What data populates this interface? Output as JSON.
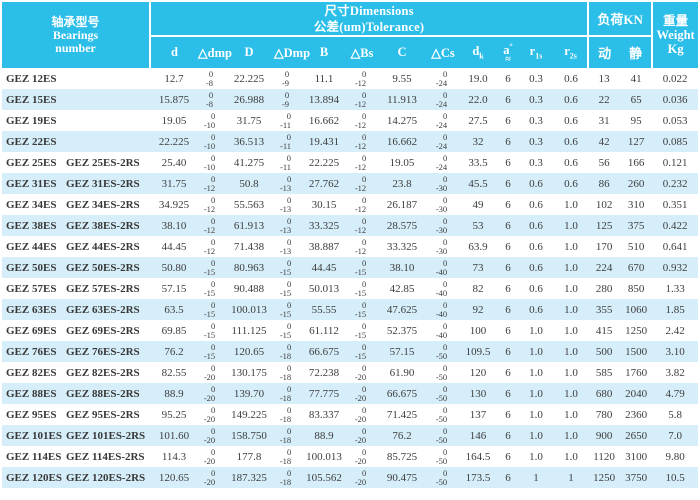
{
  "colors": {
    "header_bg": "#2BBEE8",
    "row_alt_bg": "#D6EEF9",
    "text": "#3D3D3D",
    "header_text": "#FFFFFF"
  },
  "header": {
    "bearings": {
      "zh": "轴承型号",
      "en1": "Bearings",
      "en2": "number"
    },
    "dims_line1": "尺寸Dimensions",
    "dims_line2": "公差(um)Tolerance)",
    "load_title": "负荷KN",
    "load_cols": [
      "动",
      "静"
    ],
    "weight": {
      "zh": "重量",
      "en": "Weight",
      "unit": "Kg"
    },
    "dim_cols": [
      {
        "id": "d",
        "base": "d"
      },
      {
        "id": "dmp",
        "base": "△dmp"
      },
      {
        "id": "D",
        "base": "D"
      },
      {
        "id": "Dmp",
        "base": "△Dmp"
      },
      {
        "id": "B",
        "base": "B"
      },
      {
        "id": "Bs",
        "base": "△Bs"
      },
      {
        "id": "C",
        "base": "C"
      },
      {
        "id": "Cs",
        "base": "△Cs"
      },
      {
        "id": "dk",
        "base": "d",
        "sub": "k"
      },
      {
        "id": "a",
        "base": "a",
        "sup": "°",
        "below": "≈"
      },
      {
        "id": "r1s",
        "base": "r",
        "sub": "1s"
      },
      {
        "id": "r2s",
        "base": "r",
        "sub": "2s"
      }
    ]
  },
  "table": {
    "col_keys": [
      "name1",
      "name2",
      "d",
      "dmp",
      "D",
      "Dmp",
      "B",
      "Bs",
      "C",
      "Cs",
      "dk",
      "a",
      "r1s",
      "r2s",
      "dyn",
      "stat",
      "weight"
    ],
    "rows": [
      {
        "name1": "GEZ 12ES",
        "name2": "",
        "d": "12.7",
        "dmp": [
          "0",
          "-8"
        ],
        "D": "22.225",
        "Dmp": [
          "0",
          "-9"
        ],
        "B": "11.1",
        "Bs": [
          "0",
          "-12"
        ],
        "C": "9.55",
        "Cs": [
          "0",
          "-24"
        ],
        "dk": "19.0",
        "a": "6",
        "r1s": "0.3",
        "r2s": "0.6",
        "dyn": "13",
        "stat": "41",
        "weight": "0.022"
      },
      {
        "name1": "GEZ 15ES",
        "name2": "",
        "d": "15.875",
        "dmp": [
          "0",
          "-8"
        ],
        "D": "26.988",
        "Dmp": [
          "0",
          "-9"
        ],
        "B": "13.894",
        "Bs": [
          "0",
          "-12"
        ],
        "C": "11.913",
        "Cs": [
          "0",
          "-24"
        ],
        "dk": "22.0",
        "a": "6",
        "r1s": "0.3",
        "r2s": "0.6",
        "dyn": "22",
        "stat": "65",
        "weight": "0.036"
      },
      {
        "name1": "GEZ 19ES",
        "name2": "",
        "d": "19.05",
        "dmp": [
          "0",
          "-10"
        ],
        "D": "31.75",
        "Dmp": [
          "0",
          "-11"
        ],
        "B": "16.662",
        "Bs": [
          "0",
          "-12"
        ],
        "C": "14.275",
        "Cs": [
          "0",
          "-24"
        ],
        "dk": "27.5",
        "a": "6",
        "r1s": "0.3",
        "r2s": "0.6",
        "dyn": "31",
        "stat": "95",
        "weight": "0.053"
      },
      {
        "name1": "GEZ 22ES",
        "name2": "",
        "d": "22.225",
        "dmp": [
          "0",
          "-10"
        ],
        "D": "36.513",
        "Dmp": [
          "0",
          "-11"
        ],
        "B": "19.431",
        "Bs": [
          "0",
          "-12"
        ],
        "C": "16.662",
        "Cs": [
          "0",
          "-24"
        ],
        "dk": "32",
        "a": "6",
        "r1s": "0.3",
        "r2s": "0.6",
        "dyn": "42",
        "stat": "127",
        "weight": "0.085"
      },
      {
        "name1": "GEZ 25ES",
        "name2": "GEZ 25ES-2RS",
        "d": "25.40",
        "dmp": [
          "0",
          "-10"
        ],
        "D": "41.275",
        "Dmp": [
          "0",
          "-11"
        ],
        "B": "22.225",
        "Bs": [
          "0",
          "-12"
        ],
        "C": "19.05",
        "Cs": [
          "0",
          "-24"
        ],
        "dk": "33.5",
        "a": "6",
        "r1s": "0.3",
        "r2s": "0.6",
        "dyn": "56",
        "stat": "166",
        "weight": "0.121"
      },
      {
        "name1": "GEZ 31ES",
        "name2": "GEZ 31ES-2RS",
        "d": "31.75",
        "dmp": [
          "0",
          "-12"
        ],
        "D": "50.8",
        "Dmp": [
          "0",
          "-13"
        ],
        "B": "27.762",
        "Bs": [
          "0",
          "-12"
        ],
        "C": "23.8",
        "Cs": [
          "0",
          "-30"
        ],
        "dk": "45.5",
        "a": "6",
        "r1s": "0.6",
        "r2s": "0.6",
        "dyn": "86",
        "stat": "260",
        "weight": "0.232"
      },
      {
        "name1": "GEZ 34ES",
        "name2": "GEZ 34ES-2RS",
        "d": "34.925",
        "dmp": [
          "0",
          "-12"
        ],
        "D": "55.563",
        "Dmp": [
          "0",
          "-13"
        ],
        "B": "30.15",
        "Bs": [
          "0",
          "-12"
        ],
        "C": "26.187",
        "Cs": [
          "0",
          "-30"
        ],
        "dk": "49",
        "a": "6",
        "r1s": "0.6",
        "r2s": "1.0",
        "dyn": "102",
        "stat": "310",
        "weight": "0.351"
      },
      {
        "name1": "GEZ 38ES",
        "name2": "GEZ 38ES-2RS",
        "d": "38.10",
        "dmp": [
          "0",
          "-12"
        ],
        "D": "61.913",
        "Dmp": [
          "0",
          "-13"
        ],
        "B": "33.325",
        "Bs": [
          "0",
          "-12"
        ],
        "C": "28.575",
        "Cs": [
          "0",
          "-30"
        ],
        "dk": "53",
        "a": "6",
        "r1s": "0.6",
        "r2s": "1.0",
        "dyn": "125",
        "stat": "375",
        "weight": "0.422"
      },
      {
        "name1": "GEZ 44ES",
        "name2": "GEZ 44ES-2RS",
        "d": "44.45",
        "dmp": [
          "0",
          "-12"
        ],
        "D": "71.438",
        "Dmp": [
          "0",
          "-13"
        ],
        "B": "38.887",
        "Bs": [
          "0",
          "-12"
        ],
        "C": "33.325",
        "Cs": [
          "0",
          "-30"
        ],
        "dk": "63.9",
        "a": "6",
        "r1s": "0.6",
        "r2s": "1.0",
        "dyn": "170",
        "stat": "510",
        "weight": "0.641"
      },
      {
        "name1": "GEZ 50ES",
        "name2": "GEZ 50ES-2RS",
        "d": "50.80",
        "dmp": [
          "0",
          "-15"
        ],
        "D": "80.963",
        "Dmp": [
          "0",
          "-15"
        ],
        "B": "44.45",
        "Bs": [
          "0",
          "-15"
        ],
        "C": "38.10",
        "Cs": [
          "0",
          "-40"
        ],
        "dk": "73",
        "a": "6",
        "r1s": "0.6",
        "r2s": "1.0",
        "dyn": "224",
        "stat": "670",
        "weight": "0.932"
      },
      {
        "name1": "GEZ 57ES",
        "name2": "GEZ 57ES-2RS",
        "d": "57.15",
        "dmp": [
          "0",
          "-15"
        ],
        "D": "90.488",
        "Dmp": [
          "0",
          "-15"
        ],
        "B": "50.013",
        "Bs": [
          "0",
          "-15"
        ],
        "C": "42.85",
        "Cs": [
          "0",
          "-40"
        ],
        "dk": "82",
        "a": "6",
        "r1s": "0.6",
        "r2s": "1.0",
        "dyn": "280",
        "stat": "850",
        "weight": "1.33"
      },
      {
        "name1": "GEZ 63ES",
        "name2": "GEZ 63ES-2RS",
        "d": "63.5",
        "dmp": [
          "0",
          "-15"
        ],
        "D": "100.013",
        "Dmp": [
          "0",
          "-15"
        ],
        "B": "55.55",
        "Bs": [
          "0",
          "-15"
        ],
        "C": "47.625",
        "Cs": [
          "0",
          "-40"
        ],
        "dk": "92",
        "a": "6",
        "r1s": "0.6",
        "r2s": "1.0",
        "dyn": "355",
        "stat": "1060",
        "weight": "1.85"
      },
      {
        "name1": "GEZ 69ES",
        "name2": "GEZ 69ES-2RS",
        "d": "69.85",
        "dmp": [
          "0",
          "-15"
        ],
        "D": "111.125",
        "Dmp": [
          "0",
          "-15"
        ],
        "B": "61.112",
        "Bs": [
          "0",
          "-15"
        ],
        "C": "52.375",
        "Cs": [
          "0",
          "-40"
        ],
        "dk": "100",
        "a": "6",
        "r1s": "1.0",
        "r2s": "1.0",
        "dyn": "415",
        "stat": "1250",
        "weight": "2.42"
      },
      {
        "name1": "GEZ 76ES",
        "name2": "GEZ 76ES-2RS",
        "d": "76.2",
        "dmp": [
          "0",
          "-15"
        ],
        "D": "120.65",
        "Dmp": [
          "0",
          "-18"
        ],
        "B": "66.675",
        "Bs": [
          "0",
          "-15"
        ],
        "C": "57.15",
        "Cs": [
          "0",
          "-50"
        ],
        "dk": "109.5",
        "a": "6",
        "r1s": "1.0",
        "r2s": "1.0",
        "dyn": "500",
        "stat": "1500",
        "weight": "3.10"
      },
      {
        "name1": "GEZ 82ES",
        "name2": "GEZ 82ES-2RS",
        "d": "82.55",
        "dmp": [
          "0",
          "-20"
        ],
        "D": "130.175",
        "Dmp": [
          "0",
          "-18"
        ],
        "B": "72.238",
        "Bs": [
          "0",
          "-20"
        ],
        "C": "61.90",
        "Cs": [
          "0",
          "-50"
        ],
        "dk": "120",
        "a": "6",
        "r1s": "1.0",
        "r2s": "1.0",
        "dyn": "585",
        "stat": "1760",
        "weight": "3.82"
      },
      {
        "name1": "GEZ 88ES",
        "name2": "GEZ 88ES-2RS",
        "d": "88.9",
        "dmp": [
          "0",
          "-20"
        ],
        "D": "139.70",
        "Dmp": [
          "0",
          "-18"
        ],
        "B": "77.775",
        "Bs": [
          "0",
          "-20"
        ],
        "C": "66.675",
        "Cs": [
          "0",
          "-50"
        ],
        "dk": "130",
        "a": "6",
        "r1s": "1.0",
        "r2s": "1.0",
        "dyn": "680",
        "stat": "2040",
        "weight": "4.79"
      },
      {
        "name1": "GEZ 95ES",
        "name2": "GEZ 95ES-2RS",
        "d": "95.25",
        "dmp": [
          "0",
          "-20"
        ],
        "D": "149.225",
        "Dmp": [
          "0",
          "-18"
        ],
        "B": "83.337",
        "Bs": [
          "0",
          "-20"
        ],
        "C": "71.425",
        "Cs": [
          "0",
          "-50"
        ],
        "dk": "137",
        "a": "6",
        "r1s": "1.0",
        "r2s": "1.0",
        "dyn": "780",
        "stat": "2360",
        "weight": "5.8"
      },
      {
        "name1": "GEZ 101ES",
        "name2": "GEZ 101ES-2RS",
        "d": "101.60",
        "dmp": [
          "0",
          "-20"
        ],
        "D": "158.750",
        "Dmp": [
          "0",
          "-18"
        ],
        "B": "88.9",
        "Bs": [
          "0",
          "-20"
        ],
        "C": "76.2",
        "Cs": [
          "0",
          "-50"
        ],
        "dk": "146",
        "a": "6",
        "r1s": "1.0",
        "r2s": "1.0",
        "dyn": "900",
        "stat": "2650",
        "weight": "7.0"
      },
      {
        "name1": "GEZ 114ES",
        "name2": "GEZ 114ES-2RS",
        "d": "114.3",
        "dmp": [
          "0",
          "-20"
        ],
        "D": "177.8",
        "Dmp": [
          "0",
          "-18"
        ],
        "B": "100.013",
        "Bs": [
          "0",
          "-20"
        ],
        "C": "85.725",
        "Cs": [
          "0",
          "-50"
        ],
        "dk": "164.5",
        "a": "6",
        "r1s": "1.0",
        "r2s": "1.0",
        "dyn": "1120",
        "stat": "3100",
        "weight": "9.80"
      },
      {
        "name1": "GEZ 120ES",
        "name2": "GEZ 120ES-2RS",
        "d": "120.65",
        "dmp": [
          "0",
          "-20"
        ],
        "D": "187.325",
        "Dmp": [
          "0",
          "-18"
        ],
        "B": "105.562",
        "Bs": [
          "0",
          "-20"
        ],
        "C": "90.475",
        "Cs": [
          "0",
          "-50"
        ],
        "dk": "173.5",
        "a": "6",
        "r1s": "1",
        "r2s": "1",
        "dyn": "1250",
        "stat": "3750",
        "weight": "10.5"
      }
    ]
  }
}
